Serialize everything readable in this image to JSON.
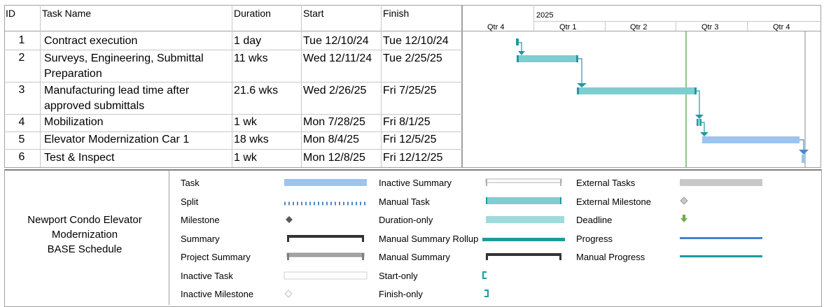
{
  "table": {
    "headers": {
      "id": "ID",
      "name": "Task Name",
      "duration": "Duration",
      "start": "Start",
      "finish": "Finish"
    },
    "rows": [
      {
        "id": "1",
        "name_line1": "Contract execution",
        "name_line2": "",
        "duration": "1 day",
        "start": "Tue 12/10/24",
        "finish": "Tue 12/10/24"
      },
      {
        "id": "2",
        "name_line1": "Surveys, Engineering, Submittal",
        "name_line2": "Preparation",
        "duration": "11 wks",
        "start": "Wed 12/11/24",
        "finish": "Tue 2/25/25"
      },
      {
        "id": "3",
        "name_line1": "Manufacturing lead time after",
        "name_line2": "approved submittals",
        "duration": "21.6 wks",
        "start": "Wed 2/26/25",
        "finish": "Fri 7/25/25"
      },
      {
        "id": "4",
        "name_line1": "Mobilization",
        "name_line2": "",
        "duration": "1 wk",
        "start": "Mon 7/28/25",
        "finish": "Fri 8/1/25"
      },
      {
        "id": "5",
        "name_line1": "Elevator Modernization Car 1",
        "name_line2": "",
        "duration": "18 wks",
        "start": "Mon 8/4/25",
        "finish": "Fri 12/5/25"
      },
      {
        "id": "6",
        "name_line1": "Test & Inspect",
        "name_line2": "",
        "duration": "1 wk",
        "start": "Mon 12/8/25",
        "finish": "Fri 12/12/25"
      }
    ]
  },
  "timescale": {
    "year": "2025",
    "quarters": [
      "Qtr 4",
      "Qtr 1",
      "Qtr 2",
      "Qtr 3",
      "Qtr 4"
    ]
  },
  "gantt": {
    "bar_colors": {
      "manual": "#7fcdd0",
      "manual_edge": "#1e9aa0",
      "auto": "#9cc4ee",
      "auto_edge": "#4a88c8",
      "today_line": "#8cc68a",
      "deadline_line": "#8a8a8a"
    }
  },
  "legend": {
    "project_title_lines": [
      "Newport Condo Elevator",
      "Modernization",
      "BASE Schedule"
    ],
    "col1": [
      "Task",
      "Split",
      "Milestone",
      "Summary",
      "Project Summary",
      "Inactive Task",
      "Inactive Milestone"
    ],
    "col2": [
      "Inactive Summary",
      "Manual Task",
      "Duration-only",
      "Manual Summary Rollup",
      "Manual Summary",
      "Start-only",
      "Finish-only"
    ],
    "col3": [
      "External Tasks",
      "External Milestone",
      "Deadline",
      "Progress",
      "Manual Progress"
    ]
  }
}
